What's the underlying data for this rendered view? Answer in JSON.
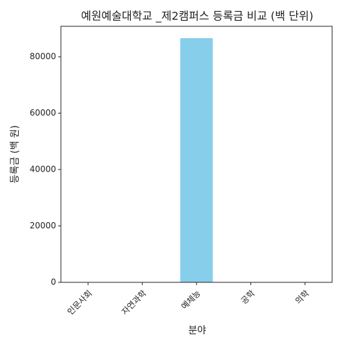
{
  "chart_data": {
    "type": "bar",
    "title": "예원예술대학교 _제2캠퍼스 등록금 비교 (백 단위)",
    "x_label": "분야",
    "y_label": "등록금 (백 원)",
    "categories": [
      "인문사회",
      "자연과학",
      "예체능",
      "공학",
      "의학"
    ],
    "values": [
      0,
      0,
      86600,
      0,
      0
    ],
    "color": "#87ceeb",
    "ylim": [
      0,
      90800
    ],
    "yticks": [
      0,
      20000,
      40000,
      60000,
      80000
    ]
  }
}
